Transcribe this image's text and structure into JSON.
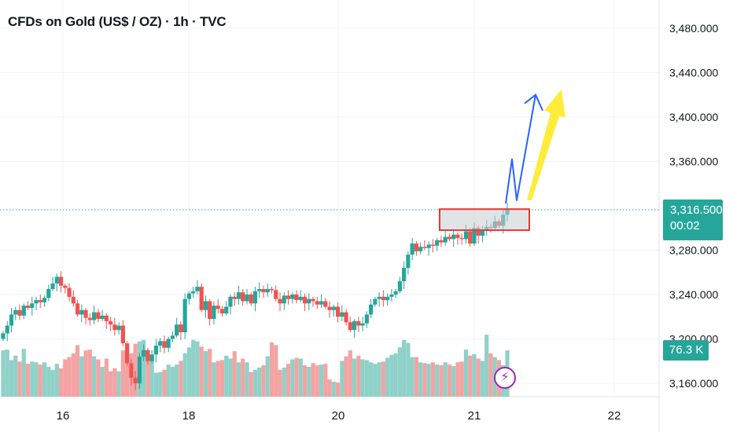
{
  "header": {
    "title": "CFDs on Gold (US$ / OZ) · 1h · TVC"
  },
  "price_label": {
    "price": "3,316.500",
    "countdown": "00:02",
    "color": "#26a69a"
  },
  "volume_label": {
    "value": "76.3 K"
  },
  "icons": {
    "alert": "lightning-bolt-icon"
  },
  "colors": {
    "up": "#26a69a",
    "down": "#ef5350",
    "up_volume": "#8fd1c8",
    "down_volume": "#f4a3a3",
    "arrow_blue": "#2962ff",
    "arrow_yellow": "#ffeb3b",
    "box_border": "#e53935",
    "box_fill": "#c9ccd1"
  },
  "chart_data": {
    "type": "candlestick",
    "title": "CFDs on Gold (US$ / OZ) · 1h · TVC",
    "y_ticks": [
      "3,480.000",
      "3,440.000",
      "3,400.000",
      "3,360.000",
      "3,280.000",
      "3,240.000",
      "3,200.000",
      "3,160.000"
    ],
    "x_ticks": [
      "16",
      "18",
      "20",
      "21",
      "22"
    ],
    "ylim": [
      3145,
      3500
    ],
    "last_price": 3316.5,
    "series": [
      {
        "name": "",
        "close": [
          3205,
          3212,
          3222,
          3226,
          3221,
          3230,
          3228,
          3232,
          3235,
          3233,
          3237,
          3245,
          3250,
          3256,
          3248,
          3246,
          3238,
          3232,
          3222,
          3226,
          3219,
          3217,
          3224,
          3218,
          3221,
          3216,
          3213,
          3208,
          3212,
          3196,
          3178,
          3165,
          3160,
          3184,
          3190,
          3180,
          3186,
          3194,
          3198,
          3192,
          3200,
          3203,
          3213,
          3206,
          3236,
          3241,
          3243,
          3247,
          3226,
          3234,
          3218,
          3230,
          3227,
          3223,
          3229,
          3238,
          3236,
          3242,
          3234,
          3240,
          3232,
          3243,
          3245,
          3242,
          3245,
          3244,
          3236,
          3232,
          3239,
          3236,
          3240,
          3235,
          3238,
          3232,
          3236,
          3234,
          3231,
          3234,
          3229,
          3226,
          3229,
          3220,
          3224,
          3215,
          3208,
          3216,
          3212,
          3214,
          3222,
          3231,
          3236,
          3238,
          3235,
          3238,
          3240,
          3243,
          3252,
          3264,
          3276,
          3286,
          3279,
          3283,
          3282,
          3285,
          3284,
          3289,
          3287,
          3292,
          3290,
          3294,
          3291,
          3290,
          3297,
          3286,
          3300,
          3293,
          3298,
          3301,
          3300,
          3306,
          3302,
          3312,
          3316.5
        ],
        "volume_relative": [
          0.62,
          0.63,
          0.49,
          0.55,
          0.47,
          0.64,
          0.44,
          0.47,
          0.46,
          0.43,
          0.46,
          0.4,
          0.36,
          0.44,
          0.38,
          0.5,
          0.53,
          0.58,
          0.69,
          0.54,
          0.62,
          0.63,
          0.54,
          0.5,
          0.4,
          0.51,
          0.34,
          0.38,
          0.34,
          0.62,
          0.64,
          0.58,
          0.71,
          0.74,
          0.76,
          0.56,
          0.56,
          0.32,
          0.33,
          0.36,
          0.43,
          0.4,
          0.43,
          0.48,
          0.58,
          0.66,
          0.76,
          0.74,
          0.67,
          0.61,
          0.64,
          0.46,
          0.48,
          0.49,
          0.55,
          0.51,
          0.61,
          0.46,
          0.51,
          0.46,
          0.33,
          0.36,
          0.39,
          0.42,
          0.54,
          0.73,
          0.69,
          0.36,
          0.39,
          0.44,
          0.5,
          0.52,
          0.51,
          0.42,
          0.4,
          0.45,
          0.42,
          0.43,
          0.44,
          0.23,
          0.2,
          0.19,
          0.48,
          0.54,
          0.62,
          0.51,
          0.55,
          0.5,
          0.49,
          0.46,
          0.44,
          0.46,
          0.47,
          0.52,
          0.56,
          0.58,
          0.66,
          0.76,
          0.72,
          0.53,
          0.53,
          0.46,
          0.45,
          0.44,
          0.46,
          0.43,
          0.42,
          0.46,
          0.43,
          0.41,
          0.46,
          0.47,
          0.63,
          0.55,
          0.57,
          0.51,
          0.48,
          0.83,
          0.58,
          0.53,
          0.49,
          0.42,
          0.62
        ]
      }
    ],
    "annotations": [
      {
        "type": "rectangle",
        "price_range": [
          3298,
          3317
        ]
      },
      {
        "type": "path-arrow",
        "color": "blue",
        "points": [
          [
            0.985,
            3322
          ],
          [
            1.0,
            3362
          ],
          [
            1.012,
            3325
          ],
          [
            1.05,
            3420
          ]
        ]
      },
      {
        "type": "big-arrow",
        "color": "yellow",
        "from": [
          1.04,
          3325
        ],
        "to": [
          1.09,
          3425
        ]
      }
    ],
    "grid": true,
    "legend": "none"
  }
}
